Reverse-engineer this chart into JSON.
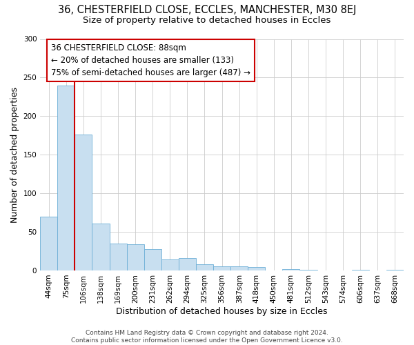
{
  "title": "36, CHESTERFIELD CLOSE, ECCLES, MANCHESTER, M30 8EJ",
  "subtitle": "Size of property relative to detached houses in Eccles",
  "xlabel": "Distribution of detached houses by size in Eccles",
  "ylabel": "Number of detached properties",
  "bar_labels": [
    "44sqm",
    "75sqm",
    "106sqm",
    "138sqm",
    "169sqm",
    "200sqm",
    "231sqm",
    "262sqm",
    "294sqm",
    "325sqm",
    "356sqm",
    "387sqm",
    "418sqm",
    "450sqm",
    "481sqm",
    "512sqm",
    "543sqm",
    "574sqm",
    "606sqm",
    "637sqm",
    "668sqm"
  ],
  "bar_values": [
    70,
    240,
    176,
    61,
    35,
    34,
    28,
    14,
    16,
    8,
    5,
    5,
    4,
    0,
    2,
    1,
    0,
    0,
    1,
    0,
    1
  ],
  "bar_color": "#c8dff0",
  "bar_edge_color": "#6baed6",
  "property_line_color": "#cc0000",
  "annotation_text": "36 CHESTERFIELD CLOSE: 88sqm\n← 20% of detached houses are smaller (133)\n75% of semi-detached houses are larger (487) →",
  "annotation_box_color": "#ffffff",
  "annotation_box_edge": "#cc0000",
  "ylim": [
    0,
    300
  ],
  "yticks": [
    0,
    50,
    100,
    150,
    200,
    250,
    300
  ],
  "grid_color": "#cccccc",
  "footer_text": "Contains HM Land Registry data © Crown copyright and database right 2024.\nContains public sector information licensed under the Open Government Licence v3.0.",
  "bg_color": "#ffffff",
  "title_fontsize": 10.5,
  "subtitle_fontsize": 9.5,
  "tick_fontsize": 7.5,
  "axis_label_fontsize": 9,
  "footer_fontsize": 6.5
}
